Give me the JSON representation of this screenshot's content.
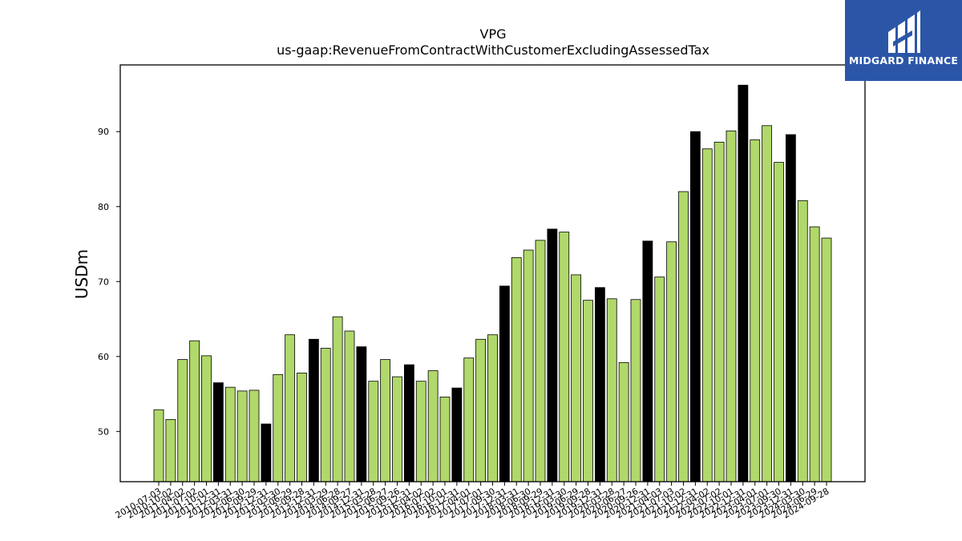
{
  "logo": {
    "text": "MIDGARD FINANCE",
    "background": "#2b56a8"
  },
  "chart_data": {
    "type": "bar",
    "title": "VPG",
    "subtitle": "us-gaap:RevenueFromContractWithCustomerExcludingAssessedTax",
    "xlabel": "",
    "ylabel": "USDm",
    "ylim": [
      43.3,
      98.9
    ],
    "yticks": [
      50,
      60,
      70,
      80,
      90
    ],
    "grid": false,
    "colors": {
      "quarter": "#b0d86a",
      "annual": "#000000",
      "edge": "#000000"
    },
    "categories": [
      "2010-07-03",
      "2010-10-02",
      "2011-04-02",
      "2011-07-02",
      "2011-10-01",
      "2011-12-31",
      "2012-03-31",
      "2012-06-30",
      "2012-09-29",
      "2012-12-31",
      "2013-03-30",
      "2013-06-29",
      "2013-09-28",
      "2013-12-31",
      "2014-03-29",
      "2014-06-28",
      "2014-09-27",
      "2014-12-31",
      "2015-03-28",
      "2015-06-27",
      "2015-09-26",
      "2015-12-31",
      "2016-04-02",
      "2016-07-02",
      "2016-10-01",
      "2016-12-31",
      "2017-04-01",
      "2017-07-01",
      "2017-09-30",
      "2017-12-31",
      "2018-03-31",
      "2018-06-30",
      "2018-09-29",
      "2018-12-31",
      "2019-03-30",
      "2019-06-29",
      "2019-09-28",
      "2019-12-31",
      "2020-03-28",
      "2020-06-27",
      "2020-09-26",
      "2020-12-31",
      "2021-04-03",
      "2021-07-03",
      "2021-10-02",
      "2021-12-31",
      "2022-04-02",
      "2022-07-02",
      "2022-10-01",
      "2022-12-31",
      "2023-04-01",
      "2023-07-01",
      "2023-09-30",
      "2023-12-31",
      "2024-03-30",
      "2024-06-29",
      "2024-09-28"
    ],
    "values": [
      52.9,
      51.6,
      59.6,
      62.1,
      60.1,
      56.5,
      55.9,
      55.4,
      55.5,
      51.0,
      57.6,
      62.9,
      57.8,
      62.3,
      61.1,
      65.3,
      63.4,
      61.3,
      56.7,
      59.6,
      57.3,
      58.9,
      56.7,
      58.1,
      54.6,
      55.8,
      59.8,
      62.3,
      62.9,
      69.4,
      73.2,
      74.2,
      75.5,
      77.0,
      76.6,
      70.9,
      67.5,
      69.2,
      67.7,
      59.2,
      67.6,
      75.4,
      70.6,
      75.3,
      82.0,
      90.0,
      87.7,
      88.6,
      90.1,
      96.2,
      88.9,
      90.8,
      85.9,
      89.6,
      80.8,
      77.3,
      75.8
    ],
    "highlighted": [
      false,
      false,
      false,
      false,
      false,
      true,
      false,
      false,
      false,
      true,
      false,
      false,
      false,
      true,
      false,
      false,
      false,
      true,
      false,
      false,
      false,
      true,
      false,
      false,
      false,
      true,
      false,
      false,
      false,
      true,
      false,
      false,
      false,
      true,
      false,
      false,
      false,
      true,
      false,
      false,
      false,
      true,
      false,
      false,
      false,
      true,
      false,
      false,
      false,
      true,
      false,
      false,
      false,
      true,
      false,
      false,
      false
    ]
  }
}
